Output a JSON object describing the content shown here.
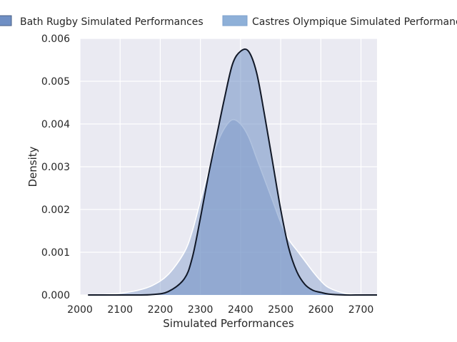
{
  "chart_data": {
    "type": "area",
    "title": "",
    "xlabel": "Simulated Performances",
    "ylabel": "Density",
    "xlim": [
      2000,
      2740
    ],
    "ylim": [
      0,
      0.006
    ],
    "x_ticks": [
      2000,
      2100,
      2200,
      2300,
      2400,
      2500,
      2600,
      2700
    ],
    "y_ticks": [
      0.0,
      0.001,
      0.002,
      0.003,
      0.004,
      0.005,
      0.006
    ],
    "grid": true,
    "legend_position": "top, above plot",
    "x": [
      2020,
      2060,
      2100,
      2140,
      2180,
      2220,
      2260,
      2280,
      2300,
      2320,
      2340,
      2360,
      2380,
      2400,
      2420,
      2440,
      2460,
      2480,
      2500,
      2520,
      2540,
      2560,
      2580,
      2600,
      2620,
      2660,
      2700,
      2740
    ],
    "series": [
      {
        "name": "Bath Rugby Simulated Performances",
        "values": [
          0,
          0,
          0,
          0,
          1e-05,
          8e-05,
          0.00038,
          0.00088,
          0.0018,
          0.0028,
          0.0037,
          0.0046,
          0.0054,
          0.0057,
          0.0057,
          0.0052,
          0.0042,
          0.0031,
          0.002,
          0.0011,
          0.00055,
          0.00025,
          0.00011,
          6e-05,
          2e-05,
          0,
          0,
          0
        ],
        "fill_color": "#6f8fc4",
        "line_color": "#111827"
      },
      {
        "name": "Castres Olympique Simulated Performances",
        "values": [
          0,
          1e-05,
          4e-05,
          0.0001,
          0.00022,
          0.00048,
          0.001,
          0.0015,
          0.0022,
          0.0029,
          0.0035,
          0.0039,
          0.0041,
          0.004,
          0.0037,
          0.0032,
          0.0027,
          0.0022,
          0.0017,
          0.0013,
          0.00105,
          0.0008,
          0.00055,
          0.00033,
          0.00017,
          4e-05,
          1e-05,
          0
        ],
        "fill_color": "#8ea6d0",
        "line_color": "#ffffff"
      }
    ]
  }
}
